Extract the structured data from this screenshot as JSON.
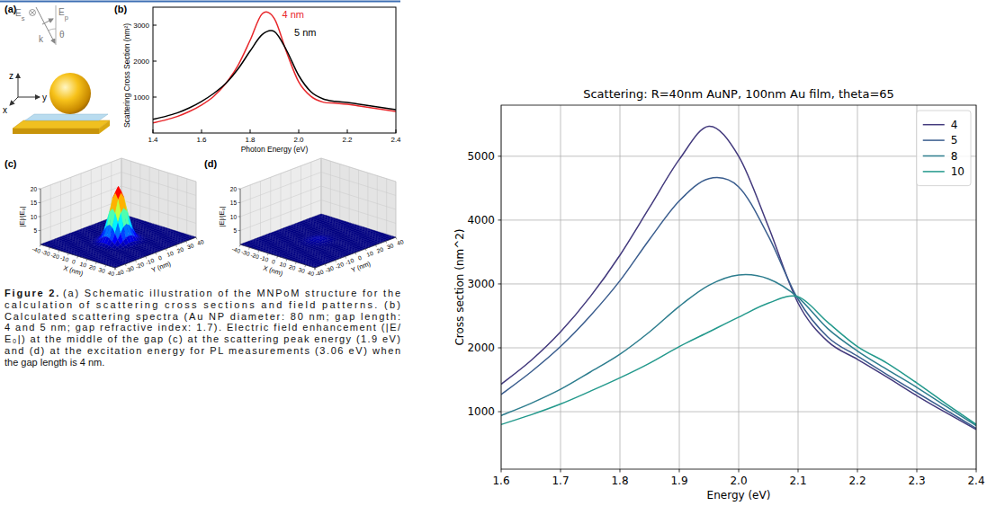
{
  "chart_data": [
    {
      "type": "line",
      "label": "(b)",
      "x_label": "Photon Energy (eV)",
      "y_label": "Scattering Cross Section (nm²)",
      "x": [
        1.4,
        1.45,
        1.5,
        1.55,
        1.6,
        1.65,
        1.7,
        1.75,
        1.8,
        1.85,
        1.9,
        1.95,
        2.0,
        2.05,
        2.1,
        2.15,
        2.2,
        2.25,
        2.3,
        2.35,
        2.4
      ],
      "series": [
        {
          "name": "4 nm",
          "color": "#e8262a",
          "values": [
            280,
            360,
            460,
            600,
            780,
            1020,
            1380,
            1880,
            2580,
            3320,
            3180,
            2250,
            1420,
            1020,
            860,
            830,
            800,
            750,
            700,
            650,
            600
          ]
        },
        {
          "name": "5 nm",
          "color": "#000000",
          "values": [
            380,
            460,
            560,
            700,
            880,
            1100,
            1380,
            1780,
            2280,
            2740,
            2820,
            2300,
            1600,
            1150,
            950,
            880,
            850,
            800,
            750,
            700,
            650
          ]
        }
      ],
      "xlim": [
        1.4,
        2.4
      ],
      "xticks": [
        1.4,
        1.6,
        1.8,
        {
          "value": 2.0,
          "label": "2.0"
        },
        2.2,
        2.4
      ],
      "ylim": [
        0,
        3500
      ],
      "yticks": [
        1000,
        2000,
        3000
      ],
      "grid": false
    },
    {
      "type": "line",
      "title": "Scattering: R=40nm AuNP, 100nm Au film, theta=65",
      "x_label": "Energy (eV)",
      "y_label": "Cross section (nm^2)",
      "x": [
        1.6,
        1.65,
        1.7,
        1.75,
        1.8,
        1.85,
        1.9,
        1.95,
        2.0,
        2.05,
        2.1,
        2.15,
        2.2,
        2.25,
        2.3,
        2.35,
        2.4
      ],
      "series": [
        {
          "name": "4",
          "color": "#433a7d",
          "values": [
            1430,
            1800,
            2250,
            2800,
            3450,
            4200,
            4950,
            5470,
            5000,
            3900,
            2700,
            2100,
            1820,
            1540,
            1250,
            980,
            720
          ]
        },
        {
          "name": "5",
          "color": "#3a5d8e",
          "values": [
            1270,
            1620,
            2020,
            2500,
            3050,
            3700,
            4300,
            4650,
            4520,
            3750,
            2760,
            2170,
            1870,
            1580,
            1300,
            1020,
            740
          ]
        },
        {
          "name": "8",
          "color": "#2d7d8e",
          "values": [
            940,
            1130,
            1350,
            1620,
            1900,
            2250,
            2650,
            2980,
            3140,
            3080,
            2790,
            2300,
            1950,
            1660,
            1380,
            1080,
            780
          ]
        },
        {
          "name": "10",
          "color": "#23998c",
          "values": [
            800,
            950,
            1120,
            1320,
            1530,
            1760,
            2020,
            2250,
            2480,
            2700,
            2800,
            2400,
            2020,
            1760,
            1450,
            1120,
            800
          ]
        }
      ],
      "xlim": [
        1.6,
        2.4
      ],
      "xticks": [
        1.6,
        1.7,
        1.8,
        1.9,
        {
          "value": 2.0,
          "label": "2.0"
        },
        2.1,
        2.2,
        2.3,
        2.4
      ],
      "ylim": [
        100,
        5800
      ],
      "yticks": [
        1000,
        2000,
        3000,
        4000,
        5000
      ],
      "grid": true,
      "legend": "upper right"
    }
  ],
  "figure": {
    "schematic": {
      "label": "(a)",
      "labels": {
        "s_field": "Es",
        "p_field": "Ep",
        "wave_vector": "k",
        "angle": "θ",
        "axis_z": "z",
        "axis_y": "y",
        "axis_x": "x"
      }
    },
    "axes3d": {
      "x_label": "X (nm)",
      "y_label": "Y (nm)",
      "z_label": "|E|/|E₀|",
      "xlim": [
        -40,
        40
      ],
      "ylim": [
        -40,
        40
      ],
      "zlim": [
        0,
        20
      ],
      "xticks": [
        -40,
        -30,
        -20,
        -10,
        0,
        10,
        20,
        30,
        40
      ],
      "yticks": [
        -40,
        -30,
        -20,
        -10,
        0,
        10,
        20,
        30,
        40
      ],
      "zticks": [
        5,
        10,
        15,
        20
      ]
    },
    "fields": [
      {
        "label": "(c)",
        "peak": 19.5,
        "fwhm": 14
      },
      {
        "label": "(d)",
        "peak": 1,
        "fwhm": 14
      }
    ],
    "caption": {
      "label": "Figure 2.",
      "lines": [
        "(a) Schematic illustration of the MNPoM structure for the",
        "calculation of scattering cross sections and field patterns. (b)",
        "Calculated scattering spectra (Au NP diameter: 80 nm; gap length:",
        "4 and 5 nm; gap refractive index: 1.7). Electric field enhancement (|E/",
        "E₀|) at the middle of the gap (c) at the scattering peak energy (1.9 eV)",
        "and (d) at the excitation energy for PL measurements (3.06 eV) when",
        "the gap length is 4 nm."
      ]
    }
  }
}
